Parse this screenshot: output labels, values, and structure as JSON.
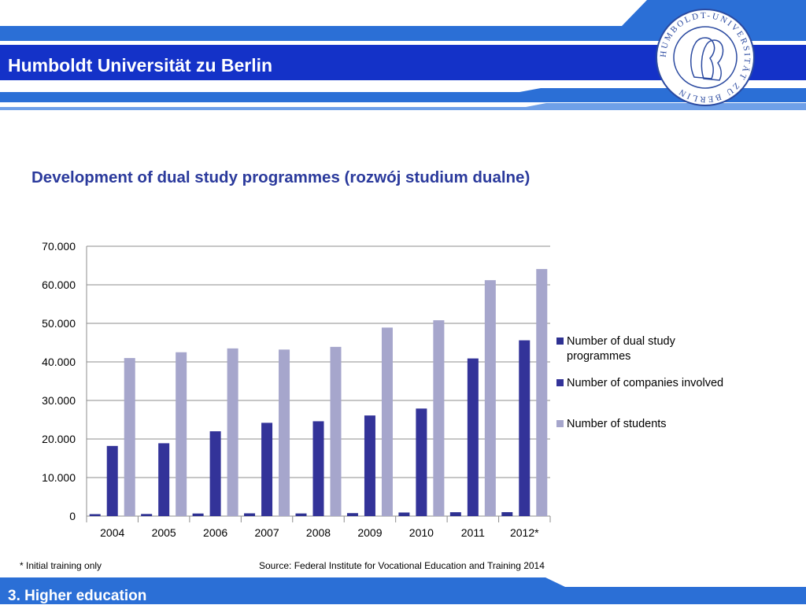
{
  "header": {
    "title": "Humboldt Universität zu Berlin",
    "seal_text": "HUMBOLDT-UNIVERSITÄT ZU BERLIN",
    "band_color": "#2b6fd6"
  },
  "slide": {
    "title": "Development of dual study programmes  (rozwój studium dualne)",
    "title_color": "#2b3a9c"
  },
  "chart_data": {
    "type": "bar",
    "categories": [
      "2004",
      "2005",
      "2006",
      "2007",
      "2008",
      "2009",
      "2010",
      "2011",
      "2012*"
    ],
    "series": [
      {
        "name": "Number of dual study programmes",
        "color": "#2e3192",
        "values": [
          512,
          547,
          675,
          720,
          687,
          776,
          929,
          1006,
          1023
        ]
      },
      {
        "name": "Number of companies involved",
        "color": "#333399",
        "values": [
          18200,
          18900,
          22000,
          24200,
          24600,
          26100,
          27900,
          40900,
          45600
        ]
      },
      {
        "name": "Number of students",
        "color": "#a6a6cc",
        "values": [
          41000,
          42500,
          43500,
          43200,
          43900,
          48900,
          50800,
          61200,
          64100
        ]
      }
    ],
    "yticks": [
      "0",
      "10.000",
      "20.000",
      "30.000",
      "40.000",
      "50.000",
      "60.000",
      "70.000"
    ],
    "ylim": [
      0,
      70000
    ],
    "grid": true,
    "legend_position": "right",
    "title": "",
    "xlabel": "",
    "ylabel": ""
  },
  "footer": {
    "footnote": "* Initial training only",
    "source": "Source: Federal Institute for Vocational Education and Training 2014",
    "section_label": "3. Higher education"
  }
}
